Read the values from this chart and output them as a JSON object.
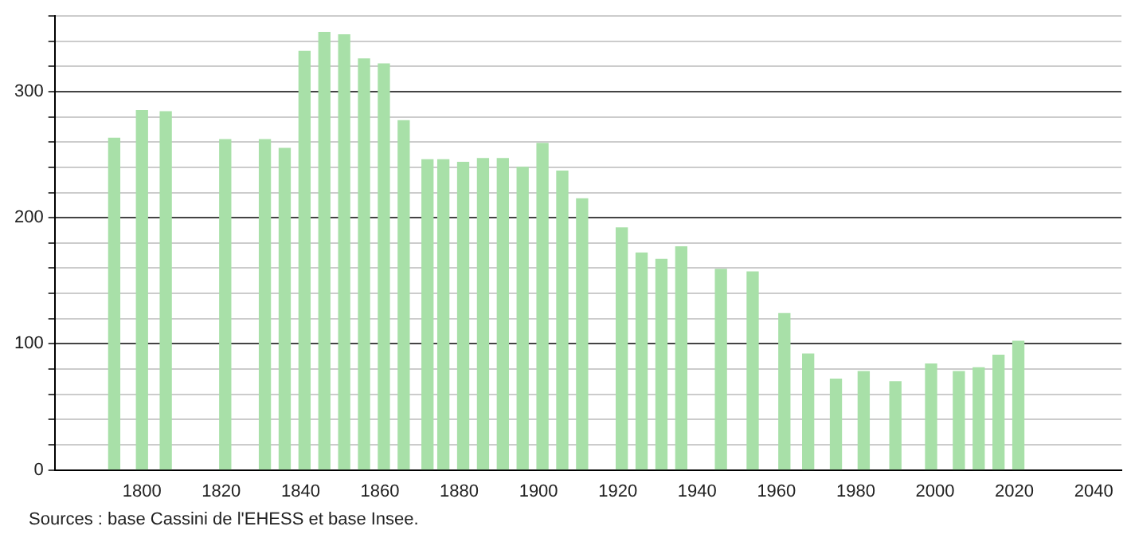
{
  "chart_data": {
    "type": "bar",
    "x": [
      1793,
      1800,
      1806,
      1821,
      1831,
      1836,
      1841,
      1846,
      1851,
      1856,
      1861,
      1866,
      1872,
      1876,
      1881,
      1886,
      1891,
      1896,
      1901,
      1906,
      1911,
      1921,
      1926,
      1931,
      1936,
      1946,
      1954,
      1962,
      1968,
      1975,
      1982,
      1990,
      1999,
      2006,
      2011,
      2016,
      2021
    ],
    "values": [
      263,
      285,
      284,
      262,
      262,
      255,
      332,
      347,
      345,
      326,
      322,
      277,
      246,
      246,
      244,
      247,
      247,
      240,
      259,
      237,
      215,
      192,
      172,
      167,
      177,
      159,
      157,
      124,
      92,
      72,
      78,
      70,
      84,
      78,
      81,
      91,
      102
    ],
    "color": "#a8e0a8",
    "xlim": [
      1778,
      2047
    ],
    "xticks": [
      1800,
      1820,
      1840,
      1860,
      1880,
      1900,
      1920,
      1940,
      1960,
      1980,
      2000,
      2020,
      2040
    ],
    "ylim": [
      0,
      360
    ],
    "yticks": [
      0,
      {
        "value": 20,
        "label": null
      },
      {
        "value": 40,
        "label": null
      },
      {
        "value": 60,
        "label": null
      },
      {
        "value": 80,
        "label": null
      },
      100,
      {
        "value": 120,
        "label": null
      },
      {
        "value": 140,
        "label": null
      },
      {
        "value": 160,
        "label": null
      },
      {
        "value": 180,
        "label": null
      },
      200,
      {
        "value": 220,
        "label": null
      },
      {
        "value": 240,
        "label": null
      },
      {
        "value": 260,
        "label": null
      },
      {
        "value": 280,
        "label": null
      },
      300,
      {
        "value": 320,
        "label": null
      },
      {
        "value": 340,
        "label": null
      },
      {
        "value": 360,
        "label": null
      }
    ],
    "grid": "y",
    "annotations": [
      "Sources : base Cassini de l'EHESS et base Insee."
    ]
  }
}
